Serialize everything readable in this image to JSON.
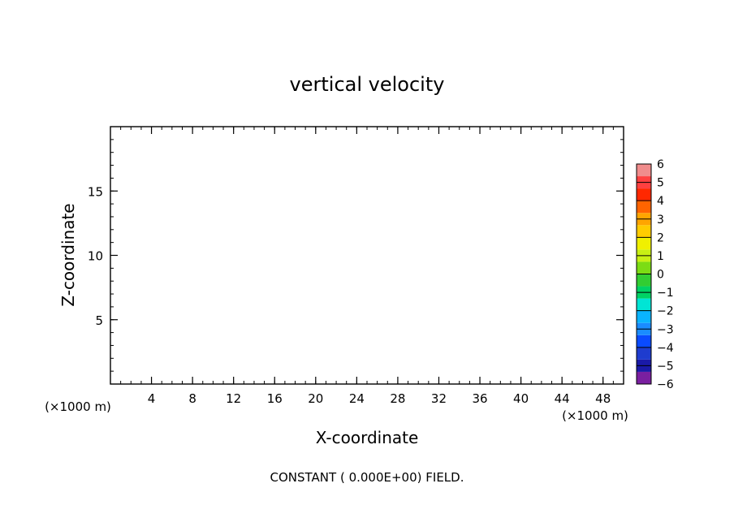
{
  "chart_data": {
    "type": "heatmap",
    "title": "vertical velocity",
    "xlabel": "X-coordinate",
    "ylabel": "Z-coordinate",
    "x_unit_left": "(×1000 m)",
    "x_unit_right": "(×1000 m)",
    "xlim": [
      0,
      50
    ],
    "ylim": [
      0,
      20
    ],
    "x_ticks": [
      4,
      8,
      12,
      16,
      20,
      24,
      28,
      32,
      36,
      40,
      44,
      48
    ],
    "y_ticks": [
      5,
      10,
      15
    ],
    "x_minor_step": 1,
    "y_minor_step": 1,
    "field_value": 0.0,
    "note": "CONSTANT ( 0.000E+00) FIELD.",
    "colorbar": {
      "levels": [
        -6,
        -5,
        -4,
        -3,
        -2,
        -1,
        0,
        1,
        2,
        3,
        4,
        5,
        6
      ],
      "colors": [
        "#7a1fa0",
        "#1a1aa8",
        "#1e3ccf",
        "#0a4bff",
        "#1a8cff",
        "#0ab4ff",
        "#00e5d5",
        "#00d264",
        "#32cd32",
        "#7cdc14",
        "#c8f014",
        "#f0f000",
        "#ffcc00",
        "#ffa500",
        "#ff6400",
        "#ff2800",
        "#ff4040",
        "#f08c8c"
      ]
    }
  }
}
